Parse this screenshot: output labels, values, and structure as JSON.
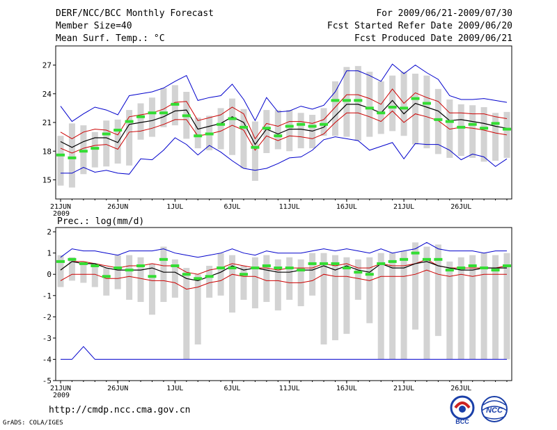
{
  "header": {
    "title": "DERF/NCC/BCC Monthly Forecast",
    "member_size": "Member Size=40",
    "variable": "Mean Surf. Temp.: °C",
    "period": "For 2009/06/21-2009/07/30",
    "start_date": "Fcst Started Refer Date 2009/06/20",
    "produced_date": "Fcst Produced Date 2009/06/21"
  },
  "footer": {
    "url": "http://cmdp.ncc.cma.gov.cn",
    "grads": "GrADS: COLA/IGES",
    "logo_bcc": "BCC",
    "logo_ncc": "NCC"
  },
  "colors": {
    "envelope": "#0000cc",
    "spread": "#cc0000",
    "mean": "#000000",
    "median": "#33dd33",
    "bar": "#d3d3d3"
  },
  "chart_data": [
    {
      "type": "line",
      "title": "Mean Surf. Temp.: °C",
      "x_ticks": [
        "21JUN",
        "26JUN",
        "1JUL",
        "6JUL",
        "11JUL",
        "16JUL",
        "21JUL",
        "26JUL"
      ],
      "x_tick_days": [
        1,
        6,
        11,
        16,
        21,
        26,
        31,
        36
      ],
      "x_sub_label": "2009",
      "days": 40,
      "ylim": [
        13,
        29
      ],
      "yticks": [
        15,
        18,
        21,
        24,
        27
      ],
      "series": {
        "max": [
          22.7,
          21.1,
          21.9,
          22.6,
          22.3,
          21.8,
          23.8,
          24.0,
          24.2,
          24.6,
          25.3,
          25.9,
          23.3,
          23.6,
          23.8,
          25.0,
          23.4,
          21.2,
          23.6,
          22.1,
          22.2,
          22.7,
          22.4,
          22.8,
          24.2,
          26.4,
          26.4,
          25.9,
          25.3,
          27.1,
          26.1,
          27.0,
          26.2,
          25.5,
          23.8,
          23.4,
          23.4,
          23.5,
          23.3,
          23.1
        ],
        "upper": [
          20.0,
          19.3,
          20.0,
          20.3,
          20.2,
          19.7,
          21.6,
          21.8,
          22.0,
          22.4,
          23.1,
          23.2,
          21.2,
          21.5,
          21.8,
          22.6,
          21.9,
          19.3,
          20.9,
          20.6,
          21.1,
          21.1,
          20.9,
          21.3,
          22.6,
          23.9,
          23.9,
          23.5,
          22.9,
          24.5,
          23.0,
          24.1,
          23.6,
          23.2,
          22.0,
          22.0,
          21.9,
          21.9,
          21.6,
          21.4
        ],
        "mean": [
          19.0,
          18.4,
          19.0,
          19.4,
          19.4,
          18.9,
          20.8,
          21.0,
          21.2,
          21.6,
          22.2,
          22.3,
          20.3,
          20.6,
          20.9,
          21.6,
          21.0,
          18.7,
          20.3,
          19.8,
          20.3,
          20.3,
          20.1,
          20.5,
          21.7,
          22.9,
          22.9,
          22.5,
          22.0,
          23.3,
          21.9,
          23.0,
          22.6,
          22.2,
          21.2,
          21.3,
          21.1,
          20.9,
          20.6,
          20.4
        ],
        "lower": [
          18.3,
          17.8,
          18.3,
          18.6,
          18.7,
          18.2,
          20.0,
          20.1,
          20.4,
          20.8,
          21.3,
          21.3,
          19.6,
          19.8,
          20.1,
          20.7,
          20.2,
          18.1,
          19.6,
          19.1,
          19.6,
          19.5,
          19.3,
          19.8,
          21.0,
          22.0,
          22.0,
          21.6,
          21.1,
          22.2,
          21.0,
          21.9,
          21.6,
          21.2,
          20.3,
          20.5,
          20.4,
          20.2,
          19.9,
          19.7
        ],
        "min": [
          15.7,
          15.7,
          16.3,
          15.8,
          16.0,
          15.7,
          15.6,
          17.2,
          17.1,
          18.1,
          19.4,
          18.7,
          17.6,
          18.6,
          17.9,
          17.0,
          16.2,
          16.0,
          16.2,
          16.7,
          17.3,
          17.4,
          18.1,
          19.2,
          19.5,
          19.3,
          19.1,
          18.1,
          18.5,
          18.9,
          17.2,
          18.8,
          18.7,
          18.7,
          18.1,
          17.1,
          17.7,
          17.4,
          16.4,
          17.2
        ],
        "median": [
          17.6,
          17.3,
          18.0,
          18.3,
          19.8,
          20.2,
          21.1,
          21.6,
          22.0,
          22.0,
          22.9,
          21.7,
          19.6,
          19.8,
          20.8,
          21.4,
          20.5,
          18.4,
          20.4,
          19.6,
          20.6,
          20.8,
          20.6,
          20.8,
          23.3,
          23.3,
          23.3,
          22.5,
          22.0,
          22.6,
          22.5,
          23.5,
          23.0,
          21.3,
          21.1,
          20.5,
          20.8,
          20.4,
          20.9,
          20.3
        ],
        "bar_top": [
          19.6,
          20.9,
          20.7,
          20.0,
          21.2,
          21.3,
          22.3,
          23.0,
          23.6,
          24.6,
          24.9,
          24.2,
          21.5,
          21.7,
          22.5,
          23.5,
          22.4,
          21.1,
          22.3,
          22.3,
          22.3,
          22.0,
          21.8,
          22.5,
          25.3,
          26.8,
          26.9,
          26.3,
          25.3,
          25.9,
          26.3,
          26.1,
          25.9,
          24.5,
          23.4,
          22.9,
          22.8,
          22.6,
          22.0,
          22.1
        ],
        "bar_bottom": [
          14.4,
          14.2,
          15.6,
          16.3,
          16.4,
          16.7,
          16.5,
          19.2,
          19.5,
          20.5,
          20.7,
          19.3,
          18.3,
          18.1,
          18.2,
          17.6,
          16.2,
          14.9,
          17.8,
          18.2,
          18.0,
          18.3,
          18.3,
          19.6,
          19.6,
          19.5,
          19.1,
          19.5,
          19.8,
          20.1,
          19.6,
          18.7,
          18.3,
          17.7,
          17.3,
          17.5,
          17.3,
          16.9,
          17.0,
          17.3
        ]
      }
    },
    {
      "type": "line",
      "title": "Prec.: log(mm/d)",
      "x_ticks": [
        "21JUN",
        "26JUN",
        "1JUL",
        "6JUL",
        "11JUL",
        "16JUL",
        "21JUL",
        "26JUL"
      ],
      "x_tick_days": [
        1,
        6,
        11,
        16,
        21,
        26,
        31,
        36
      ],
      "x_sub_label": "2009",
      "days": 40,
      "ylim": [
        -5,
        2.2
      ],
      "yticks": [
        -5,
        -4,
        -3,
        -2,
        -1,
        0,
        1,
        2
      ],
      "series": {
        "max": [
          0.8,
          1.2,
          1.1,
          1.1,
          1.0,
          0.9,
          1.1,
          1.1,
          1.1,
          1.2,
          1.0,
          0.9,
          0.8,
          0.9,
          1.0,
          1.2,
          1.0,
          0.9,
          1.1,
          1.0,
          1.0,
          1.0,
          1.1,
          1.2,
          1.1,
          1.2,
          1.1,
          1.0,
          1.2,
          1.0,
          1.1,
          1.2,
          1.5,
          1.2,
          1.1,
          1.1,
          1.1,
          1.0,
          1.1,
          1.1
        ],
        "upper": [
          0.2,
          0.6,
          0.6,
          0.5,
          0.4,
          0.3,
          0.4,
          0.4,
          0.5,
          0.4,
          0.4,
          0.1,
          0.0,
          0.2,
          0.3,
          0.5,
          0.4,
          0.3,
          0.3,
          0.2,
          0.3,
          0.3,
          0.3,
          0.5,
          0.4,
          0.5,
          0.3,
          0.3,
          0.5,
          0.4,
          0.4,
          0.5,
          0.7,
          0.4,
          0.3,
          0.3,
          0.3,
          0.3,
          0.3,
          0.4
        ],
        "mean": [
          0.2,
          0.6,
          0.5,
          0.5,
          0.3,
          0.2,
          0.2,
          0.2,
          0.3,
          0.1,
          0.1,
          -0.2,
          -0.3,
          -0.1,
          0.1,
          0.4,
          0.2,
          0.3,
          0.2,
          0.1,
          0.1,
          0.2,
          0.2,
          0.4,
          0.2,
          0.4,
          0.2,
          0.1,
          0.5,
          0.3,
          0.3,
          0.5,
          0.6,
          0.4,
          0.3,
          0.2,
          0.2,
          0.3,
          0.3,
          0.3
        ],
        "lower": [
          -0.3,
          0.0,
          0.0,
          0.0,
          -0.2,
          -0.2,
          -0.1,
          -0.2,
          -0.3,
          -0.3,
          -0.4,
          -0.7,
          -0.6,
          -0.4,
          -0.3,
          0.0,
          -0.1,
          -0.1,
          -0.3,
          -0.3,
          -0.4,
          -0.4,
          -0.3,
          0.0,
          -0.1,
          -0.1,
          -0.2,
          -0.3,
          -0.1,
          -0.1,
          -0.1,
          0.0,
          0.2,
          0.0,
          -0.1,
          0.0,
          -0.1,
          0.0,
          0.0,
          0.0
        ],
        "min": [
          -4.0,
          -4.0,
          -3.4,
          -4.0,
          -4.0,
          -4.0,
          -4.0,
          -4.0,
          -4.0,
          -4.0,
          -4.0,
          -4.0,
          -4.0,
          -4.0,
          -4.0,
          -4.0,
          -4.0,
          -4.0,
          -4.0,
          -4.0,
          -4.0,
          -4.0,
          -4.0,
          -4.0,
          -4.0,
          -4.0,
          -4.0,
          -4.0,
          -4.0,
          -4.0,
          -4.0,
          -4.0,
          -4.0,
          -4.0,
          -4.0,
          -4.0,
          -4.0,
          -4.0,
          -4.0,
          -4.0
        ],
        "median": [
          0.6,
          0.7,
          0.5,
          0.4,
          -0.1,
          0.3,
          0.2,
          0.4,
          -0.1,
          0.7,
          0.4,
          0.0,
          -0.2,
          -0.1,
          0.3,
          0.3,
          0.0,
          0.3,
          0.4,
          0.3,
          0.3,
          0.2,
          0.5,
          0.5,
          0.5,
          0.3,
          0.1,
          0.0,
          0.5,
          0.6,
          0.7,
          1.0,
          0.7,
          0.7,
          0.2,
          0.3,
          0.4,
          0.3,
          0.2,
          0.4
        ],
        "bar_top": [
          0.9,
          0.8,
          0.6,
          0.5,
          0.3,
          0.9,
          0.9,
          0.8,
          0.5,
          1.3,
          0.7,
          0.3,
          0.0,
          0.4,
          1.0,
          0.9,
          0.4,
          0.8,
          0.9,
          0.7,
          0.8,
          0.7,
          1.0,
          1.0,
          0.9,
          0.8,
          0.7,
          0.8,
          1.0,
          1.0,
          1.1,
          1.5,
          1.3,
          1.4,
          0.6,
          0.8,
          0.9,
          1.0,
          0.9,
          1.0
        ],
        "bar_bottom": [
          -0.6,
          -0.3,
          -0.4,
          -0.6,
          -1.0,
          -0.7,
          -1.2,
          -1.3,
          -1.9,
          -1.3,
          -1.1,
          -4.0,
          -3.3,
          -1.1,
          -1.0,
          -1.8,
          -1.2,
          -1.6,
          -1.3,
          -1.7,
          -1.2,
          -1.5,
          -1.0,
          -3.3,
          -3.1,
          -2.8,
          -1.2,
          -2.3,
          -4.0,
          -4.0,
          -4.0,
          -2.6,
          -4.0,
          -2.9,
          -4.0,
          -4.0,
          -4.0,
          -4.0,
          -4.0,
          -4.0
        ]
      }
    }
  ]
}
